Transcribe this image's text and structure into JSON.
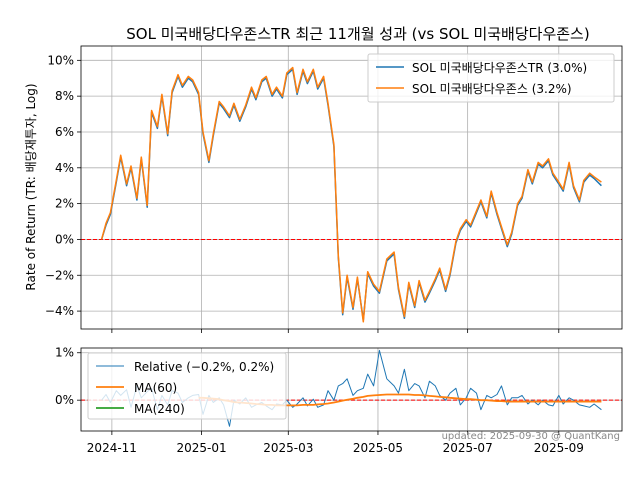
{
  "title": "SOL 미국배당다우존스TR 최근 11개월 성과 (vs SOL 미국배당다우존스)",
  "footer": "updated: 2025-09-30 @ QuantKang",
  "colors": {
    "tr": "#1f77b4",
    "base": "#ff7f0e",
    "ma60": "#ff7f0e",
    "ma240": "#2ca02c",
    "relative": "#1f77b4",
    "zero_line": "#ff0000"
  },
  "chart_data": [
    {
      "type": "line",
      "ylabel": "Rate of Return (TR: 배당재투자, Log)",
      "ylim": [
        -5.0,
        10.8
      ],
      "y_ticks": [
        -4,
        -2,
        0,
        2,
        4,
        6,
        8,
        10
      ],
      "y_tick_labels": [
        "−4%",
        "−2%",
        "0%",
        "2%",
        "4%",
        "6%",
        "8%",
        "10%"
      ],
      "grid": true,
      "legend_position": "top-right",
      "x": [
        "2024-10-25",
        "2024-10-28",
        "2024-10-31",
        "2024-11-04",
        "2024-11-07",
        "2024-11-11",
        "2024-11-14",
        "2024-11-18",
        "2024-11-21",
        "2024-11-25",
        "2024-11-28",
        "2024-12-02",
        "2024-12-05",
        "2024-12-09",
        "2024-12-12",
        "2024-12-16",
        "2024-12-19",
        "2024-12-23",
        "2024-12-26",
        "2024-12-30",
        "2025-01-02",
        "2025-01-06",
        "2025-01-09",
        "2025-01-13",
        "2025-01-16",
        "2025-01-20",
        "2025-01-23",
        "2025-01-27",
        "2025-01-31",
        "2025-02-04",
        "2025-02-07",
        "2025-02-11",
        "2025-02-14",
        "2025-02-18",
        "2025-02-21",
        "2025-02-25",
        "2025-02-28",
        "2025-03-04",
        "2025-03-07",
        "2025-03-11",
        "2025-03-14",
        "2025-03-18",
        "2025-03-21",
        "2025-03-25",
        "2025-03-28",
        "2025-04-01",
        "2025-04-04",
        "2025-04-07",
        "2025-04-10",
        "2025-04-14",
        "2025-04-17",
        "2025-04-21",
        "2025-04-24",
        "2025-04-28",
        "2025-05-02",
        "2025-05-07",
        "2025-05-12",
        "2025-05-15",
        "2025-05-19",
        "2025-05-22",
        "2025-05-26",
        "2025-05-29",
        "2025-06-02",
        "2025-06-05",
        "2025-06-09",
        "2025-06-12",
        "2025-06-16",
        "2025-06-19",
        "2025-06-23",
        "2025-06-26",
        "2025-06-30",
        "2025-07-03",
        "2025-07-07",
        "2025-07-10",
        "2025-07-14",
        "2025-07-17",
        "2025-07-21",
        "2025-07-24",
        "2025-07-28",
        "2025-07-31",
        "2025-08-04",
        "2025-08-07",
        "2025-08-11",
        "2025-08-14",
        "2025-08-18",
        "2025-08-21",
        "2025-08-25",
        "2025-08-28",
        "2025-09-01",
        "2025-09-04",
        "2025-09-08",
        "2025-09-11",
        "2025-09-15",
        "2025-09-18",
        "2025-09-22",
        "2025-09-25",
        "2025-09-30"
      ],
      "series": [
        {
          "name": "SOL 미국배당다우존스TR (3.0%)",
          "values": [
            0.0,
            0.8,
            1.4,
            3.2,
            4.6,
            3.0,
            4.0,
            2.2,
            4.5,
            1.8,
            7.1,
            6.2,
            8.0,
            5.8,
            8.2,
            9.1,
            8.5,
            9.0,
            8.8,
            8.1,
            5.9,
            4.3,
            5.8,
            7.6,
            7.3,
            6.8,
            7.5,
            6.6,
            7.4,
            8.4,
            7.8,
            8.8,
            9.0,
            8.0,
            8.4,
            7.9,
            9.2,
            9.5,
            8.1,
            9.4,
            8.7,
            9.4,
            8.4,
            9.0,
            7.5,
            5.2,
            -1.0,
            -4.2,
            -2.1,
            -3.9,
            -2.2,
            -4.5,
            -1.9,
            -2.6,
            -3.0,
            -1.2,
            -0.8,
            -2.8,
            -4.4,
            -2.5,
            -3.8,
            -2.4,
            -3.5,
            -3.0,
            -2.3,
            -1.7,
            -2.9,
            -2.0,
            -0.2,
            0.5,
            1.0,
            0.7,
            1.5,
            2.1,
            1.2,
            2.6,
            1.4,
            0.6,
            -0.4,
            0.3,
            1.9,
            2.3,
            3.8,
            3.1,
            4.2,
            4.0,
            4.4,
            3.6,
            3.1,
            2.7,
            4.2,
            2.9,
            2.1,
            3.2,
            3.6,
            3.4,
            3.0
          ]
        },
        {
          "name": "SOL 미국배당다우존스 (3.2%)",
          "values": [
            0.0,
            0.9,
            1.5,
            3.3,
            4.7,
            3.1,
            4.1,
            2.3,
            4.6,
            1.9,
            7.2,
            6.3,
            8.1,
            5.9,
            8.3,
            9.2,
            8.6,
            9.1,
            8.9,
            8.2,
            6.0,
            4.4,
            5.9,
            7.7,
            7.4,
            6.9,
            7.6,
            6.7,
            7.5,
            8.5,
            7.9,
            8.9,
            9.1,
            8.1,
            8.5,
            8.0,
            9.3,
            9.6,
            8.2,
            9.5,
            8.8,
            9.5,
            8.5,
            9.1,
            7.6,
            5.3,
            -0.9,
            -4.1,
            -2.0,
            -3.8,
            -2.1,
            -4.6,
            -1.8,
            -2.5,
            -2.9,
            -1.1,
            -0.7,
            -2.7,
            -4.3,
            -2.4,
            -3.7,
            -2.3,
            -3.4,
            -2.9,
            -2.2,
            -1.6,
            -2.8,
            -1.9,
            -0.1,
            0.6,
            1.1,
            0.8,
            1.6,
            2.2,
            1.3,
            2.7,
            1.5,
            0.7,
            -0.3,
            0.4,
            2.0,
            2.4,
            3.9,
            3.2,
            4.3,
            4.1,
            4.5,
            3.7,
            3.2,
            2.8,
            4.3,
            3.0,
            2.2,
            3.3,
            3.7,
            3.5,
            3.2
          ]
        }
      ]
    },
    {
      "type": "line",
      "ylim": [
        -0.65,
        1.1
      ],
      "y_ticks": [
        0,
        1
      ],
      "y_tick_labels": [
        "0%",
        "1%"
      ],
      "x_ticks": [
        "2024-11-01",
        "2025-01-01",
        "2025-03-01",
        "2025-05-01",
        "2025-07-01",
        "2025-09-01"
      ],
      "x_tick_labels": [
        "2024-11",
        "2025-01",
        "2025-03",
        "2025-05",
        "2025-07",
        "2025-09"
      ],
      "grid": true,
      "legend_position": "top-left",
      "series": [
        {
          "name": "Relative (−0.2%, 0.2%)",
          "values": [
            0.0,
            0.12,
            -0.05,
            0.2,
            0.1,
            0.22,
            -0.15,
            0.3,
            0.05,
            0.18,
            0.25,
            -0.2,
            0.1,
            -0.1,
            0.2,
            0.15,
            -0.05,
            0.05,
            0.1,
            0.12,
            -0.3,
            0.1,
            -0.05,
            0.05,
            -0.1,
            -0.55,
            0.0,
            -0.08,
            0.05,
            -0.15,
            -0.1,
            -0.05,
            -0.12,
            -0.2,
            -0.08,
            -0.1,
            0.0,
            -0.15,
            -0.08,
            0.05,
            -0.12,
            0.02,
            -0.15,
            -0.1,
            0.2,
            0.0,
            0.3,
            0.35,
            0.45,
            0.1,
            0.2,
            0.25,
            0.55,
            0.3,
            1.05,
            0.45,
            0.3,
            0.15,
            0.65,
            0.2,
            0.35,
            0.3,
            0.05,
            0.4,
            0.3,
            0.1,
            0.0,
            0.15,
            0.25,
            -0.1,
            0.05,
            0.25,
            0.15,
            -0.2,
            0.1,
            0.05,
            0.12,
            0.3,
            -0.1,
            0.05,
            0.05,
            0.1,
            -0.08,
            0.0,
            -0.1,
            0.0,
            -0.1,
            -0.12,
            0.1,
            -0.08,
            0.05,
            0.0,
            -0.1,
            -0.12,
            -0.15,
            -0.08,
            -0.2
          ]
        },
        {
          "name": "MA(60)",
          "values": [
            null,
            null,
            null,
            null,
            null,
            null,
            null,
            null,
            null,
            null,
            null,
            null,
            null,
            null,
            null,
            null,
            null,
            null,
            null,
            0.05,
            0.05,
            0.04,
            0.03,
            0.02,
            0.0,
            -0.02,
            -0.04,
            -0.05,
            -0.06,
            -0.07,
            -0.08,
            -0.09,
            -0.1,
            -0.1,
            -0.11,
            -0.11,
            -0.11,
            -0.11,
            -0.11,
            -0.1,
            -0.1,
            -0.1,
            -0.09,
            -0.08,
            -0.07,
            -0.05,
            -0.03,
            -0.01,
            0.01,
            0.03,
            0.05,
            0.07,
            0.09,
            0.1,
            0.11,
            0.12,
            0.12,
            0.12,
            0.12,
            0.12,
            0.11,
            0.11,
            0.1,
            0.09,
            0.08,
            0.07,
            0.06,
            0.05,
            0.04,
            0.03,
            0.02,
            0.02,
            0.01,
            0.0,
            0.0,
            -0.01,
            -0.02,
            -0.02,
            -0.03,
            -0.03,
            -0.03,
            -0.03,
            -0.03,
            -0.03,
            -0.03,
            -0.03,
            -0.03,
            -0.03,
            -0.03,
            -0.03,
            -0.03,
            -0.03,
            -0.03,
            -0.03,
            -0.03,
            -0.03,
            -0.03
          ]
        },
        {
          "name": "MA(240)",
          "values": []
        }
      ]
    }
  ]
}
